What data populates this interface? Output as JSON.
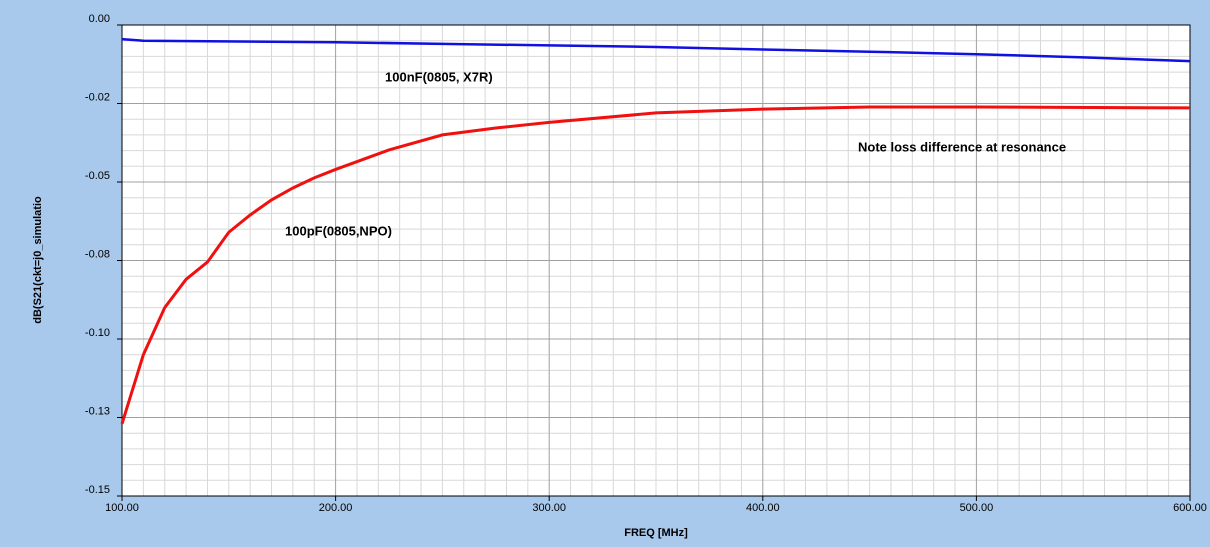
{
  "chart_data": {
    "type": "line",
    "x_label": "FREQ [MHz]",
    "y_label": "dB(S21(ckt=j0_simulatio",
    "annotation": "Note loss difference at resonance",
    "grid": true,
    "xlim": [
      100,
      600
    ],
    "xticks": [
      {
        "value": 100,
        "label": "100.00"
      },
      {
        "value": 200,
        "label": "200.00"
      },
      {
        "value": 300,
        "label": "300.00"
      },
      {
        "value": 400,
        "label": "400.00"
      },
      {
        "value": 500,
        "label": "500.00"
      },
      {
        "value": 600,
        "label": "600.00"
      }
    ],
    "ylim": [
      -0.15,
      0
    ],
    "yticks": [
      {
        "value": 0,
        "label": "0.00"
      },
      {
        "value": -0.025,
        "label": "-0.02"
      },
      -0.05,
      {
        "value": -0.075,
        "label": "-0.08"
      },
      {
        "value": -0.1,
        "label": "-0.10"
      },
      {
        "value": -0.125,
        "label": "-0.13"
      },
      -0.15
    ],
    "series": [
      {
        "name": "100nF(0805, X7R)",
        "color": "#1010e0",
        "x": [
          100,
          110,
          200,
          250,
          300,
          350,
          400,
          450,
          500,
          550,
          600
        ],
        "values": [
          -0.0045,
          -0.005,
          -0.0055,
          -0.006,
          -0.0065,
          -0.007,
          -0.0078,
          -0.0085,
          -0.0093,
          -0.0103,
          -0.0115
        ]
      },
      {
        "name": "100pF(0805,NPO)",
        "color": "#f01010",
        "x": [
          100,
          110,
          120,
          130,
          140,
          150,
          160,
          170,
          180,
          190,
          200,
          225,
          250,
          275,
          300,
          350,
          400,
          450,
          500,
          600
        ],
        "values": [
          -0.127,
          -0.105,
          -0.09,
          -0.081,
          -0.0755,
          -0.066,
          -0.0605,
          -0.0557,
          -0.0519,
          -0.0487,
          -0.046,
          -0.0398,
          -0.035,
          -0.0328,
          -0.031,
          -0.028,
          -0.0268,
          -0.0261,
          -0.0261,
          -0.0264
        ]
      }
    ]
  }
}
